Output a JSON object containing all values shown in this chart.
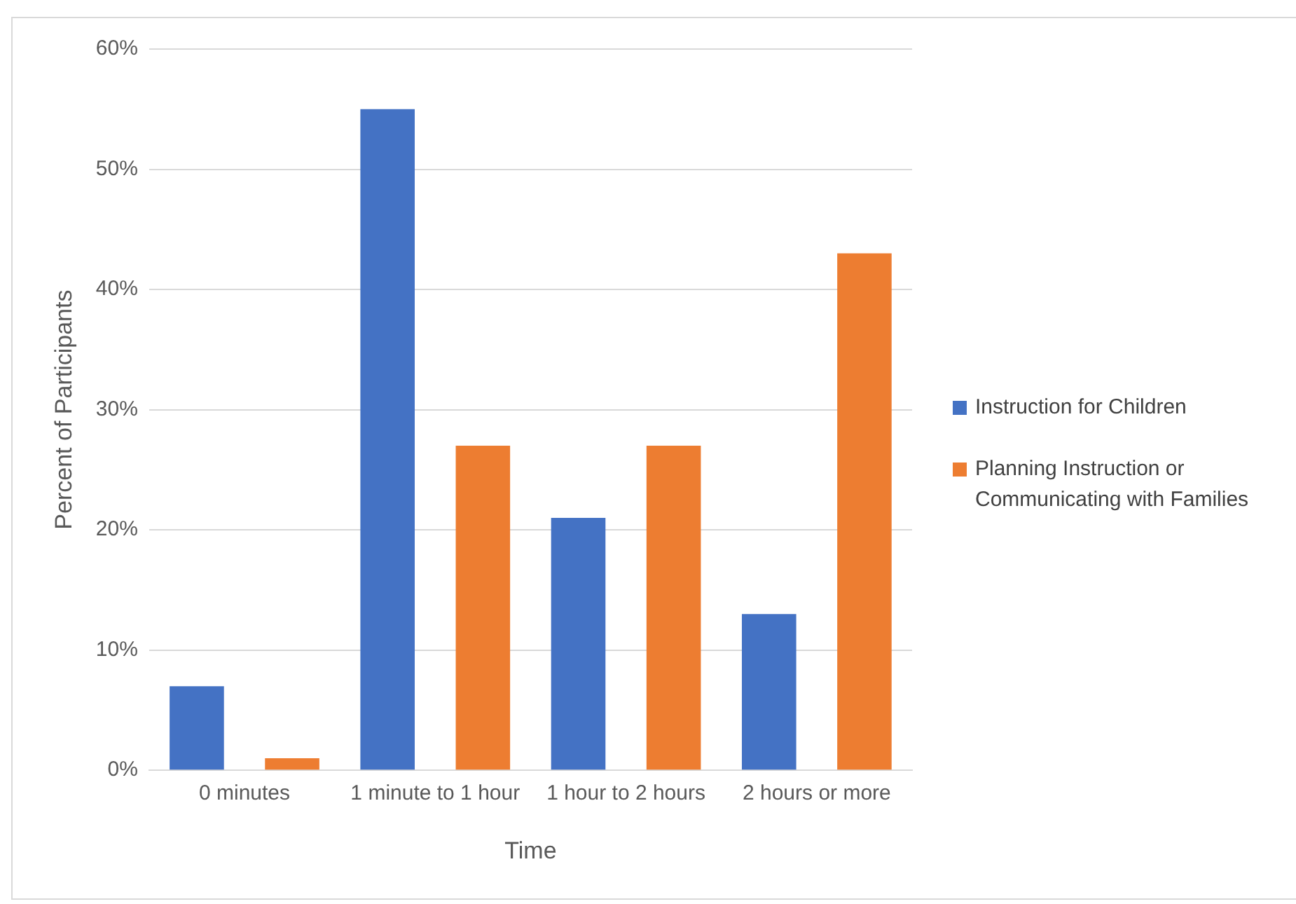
{
  "chart_data": {
    "type": "bar",
    "xlabel": "Time",
    "ylabel": "Percent of Participants",
    "categories": [
      "0 minutes",
      "1 minute to 1 hour",
      "1 hour to 2 hours",
      "2 hours or more"
    ],
    "series": [
      {
        "name": "Instruction for Children",
        "color": "#4472c4",
        "values": [
          7,
          55,
          21,
          13
        ]
      },
      {
        "name": "Planning Instruction or Communicating with Families",
        "color": "#ed7d31",
        "values": [
          1,
          27,
          27,
          43
        ]
      }
    ],
    "ylim": [
      0,
      60
    ],
    "yticks": [
      {
        "value": 0,
        "label": "0%"
      },
      {
        "value": 10,
        "label": "10%"
      },
      {
        "value": 20,
        "label": "20%"
      },
      {
        "value": 30,
        "label": "30%"
      },
      {
        "value": 40,
        "label": "40%"
      },
      {
        "value": 50,
        "label": "50%"
      },
      {
        "value": 60,
        "label": "60%"
      }
    ],
    "grid": "y",
    "legend": "right"
  }
}
